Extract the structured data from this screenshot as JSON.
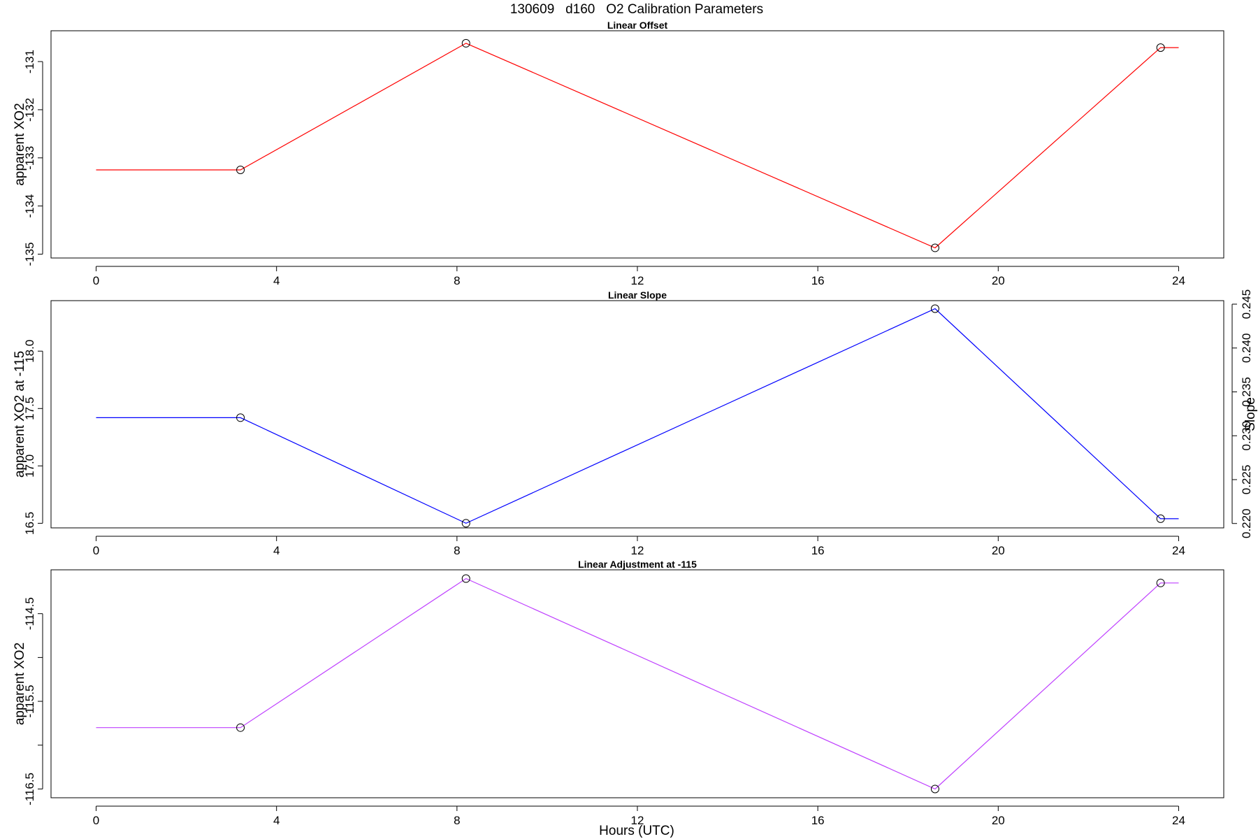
{
  "figure": {
    "title": "130609   d160   O2 Calibration Parameters",
    "xlabel": "Hours (UTC)"
  },
  "chart_data": [
    {
      "type": "line",
      "title": "Linear Offset",
      "xlabel": "",
      "ylabel": "apparent XO2",
      "xlim": [
        -1,
        25
      ],
      "ylim": [
        -135.08,
        -130.36
      ],
      "xticks": [
        0,
        4,
        8,
        12,
        16,
        20,
        24
      ],
      "yticks": [
        -135,
        -134,
        -133,
        -132,
        -131
      ],
      "grid": false,
      "series": [
        {
          "color": "#ff0000",
          "line": {
            "x": [
              0,
              3.2,
              8.2,
              18.6,
              23.6,
              24
            ],
            "y": [
              -133.25,
              -133.25,
              -130.62,
              -134.87,
              -130.71,
              -130.71
            ]
          },
          "points": {
            "x": [
              3.2,
              8.2,
              18.6,
              23.6
            ],
            "y": [
              -133.25,
              -130.62,
              -134.87,
              -130.71
            ]
          }
        }
      ]
    },
    {
      "type": "line",
      "title": "Linear Slope",
      "xlabel": "",
      "ylabel": "apparent XO2 at -115",
      "y2label": "Slope",
      "xlim": [
        -1,
        25
      ],
      "ylim": [
        16.46,
        18.44
      ],
      "y2lim": [
        0.2195,
        0.2454
      ],
      "xticks": [
        0,
        4,
        8,
        12,
        16,
        20,
        24
      ],
      "yticks": [
        "16.5",
        "17.0",
        "17.5",
        "18.0"
      ],
      "y2ticks": [
        "0.220",
        "0.225",
        "0.230",
        "0.235",
        "0.240",
        "0.245"
      ],
      "grid": false,
      "series": [
        {
          "color": "#0000ff",
          "line": {
            "x": [
              0,
              3.2,
              8.2,
              18.6,
              23.6,
              24
            ],
            "y": [
              17.42,
              17.42,
              16.5,
              18.37,
              16.54,
              16.54
            ]
          },
          "points": {
            "x": [
              3.2,
              8.2,
              18.6,
              23.6
            ],
            "y": [
              17.42,
              16.5,
              18.37,
              16.54
            ]
          }
        }
      ]
    },
    {
      "type": "line",
      "title": "Linear Adjustment at -115",
      "xlabel": "Hours (UTC)",
      "ylabel": "apparent XO2",
      "xlim": [
        -1,
        25
      ],
      "ylim": [
        -116.6,
        -114.0
      ],
      "xticks": [
        0,
        4,
        8,
        12,
        16,
        20,
        24
      ],
      "yticks": [
        "-116.5",
        "-115.5",
        "-114.5"
      ],
      "yticks_minor": [
        "-116.0",
        "-115.0"
      ],
      "grid": false,
      "series": [
        {
          "color": "#bf40ff",
          "line": {
            "x": [
              0,
              3.2,
              8.2,
              18.6,
              23.6,
              24
            ],
            "y": [
              -115.8,
              -115.8,
              -114.1,
              -116.5,
              -114.15,
              -114.15
            ]
          },
          "points": {
            "x": [
              3.2,
              8.2,
              18.6,
              23.6
            ],
            "y": [
              -115.8,
              -114.1,
              -116.5,
              -114.15
            ]
          }
        }
      ]
    }
  ]
}
